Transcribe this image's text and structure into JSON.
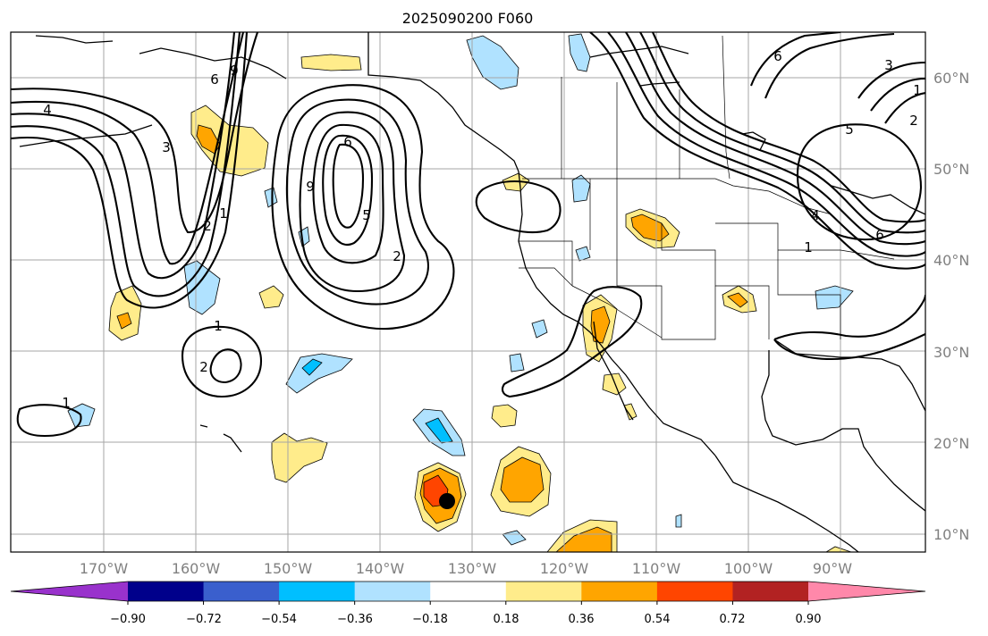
{
  "title": "2025090200 F060",
  "map": {
    "lat_labels": [
      "10°N",
      "20°N",
      "30°N",
      "40°N",
      "50°N",
      "60°N"
    ],
    "lon_labels": [
      "170°W",
      "160°W",
      "150°W",
      "140°W",
      "130°W",
      "120°W",
      "110°W",
      "100°W",
      "90°W"
    ],
    "contour_labels": [
      "4",
      "3",
      "2",
      "1",
      "6",
      "9",
      "6",
      "9",
      "5",
      "2",
      "1",
      "2",
      "1",
      "6",
      "3",
      "1",
      "2",
      "5",
      "4",
      "6",
      "1"
    ],
    "storm_marker": "black-dot"
  },
  "colorbar": {
    "ticks": [
      "−0.90",
      "−0.72",
      "−0.54",
      "−0.36",
      "−0.18",
      "0.18",
      "0.36",
      "0.54",
      "0.72",
      "0.90"
    ],
    "colors": [
      "#9932CC",
      "#00008B",
      "#3A5FCD",
      "#00BFFF",
      "#B0E2FF",
      "#FFFFFF",
      "#FFEC8B",
      "#FFA500",
      "#FF4500",
      "#B22222",
      "#FF88AA"
    ]
  }
}
